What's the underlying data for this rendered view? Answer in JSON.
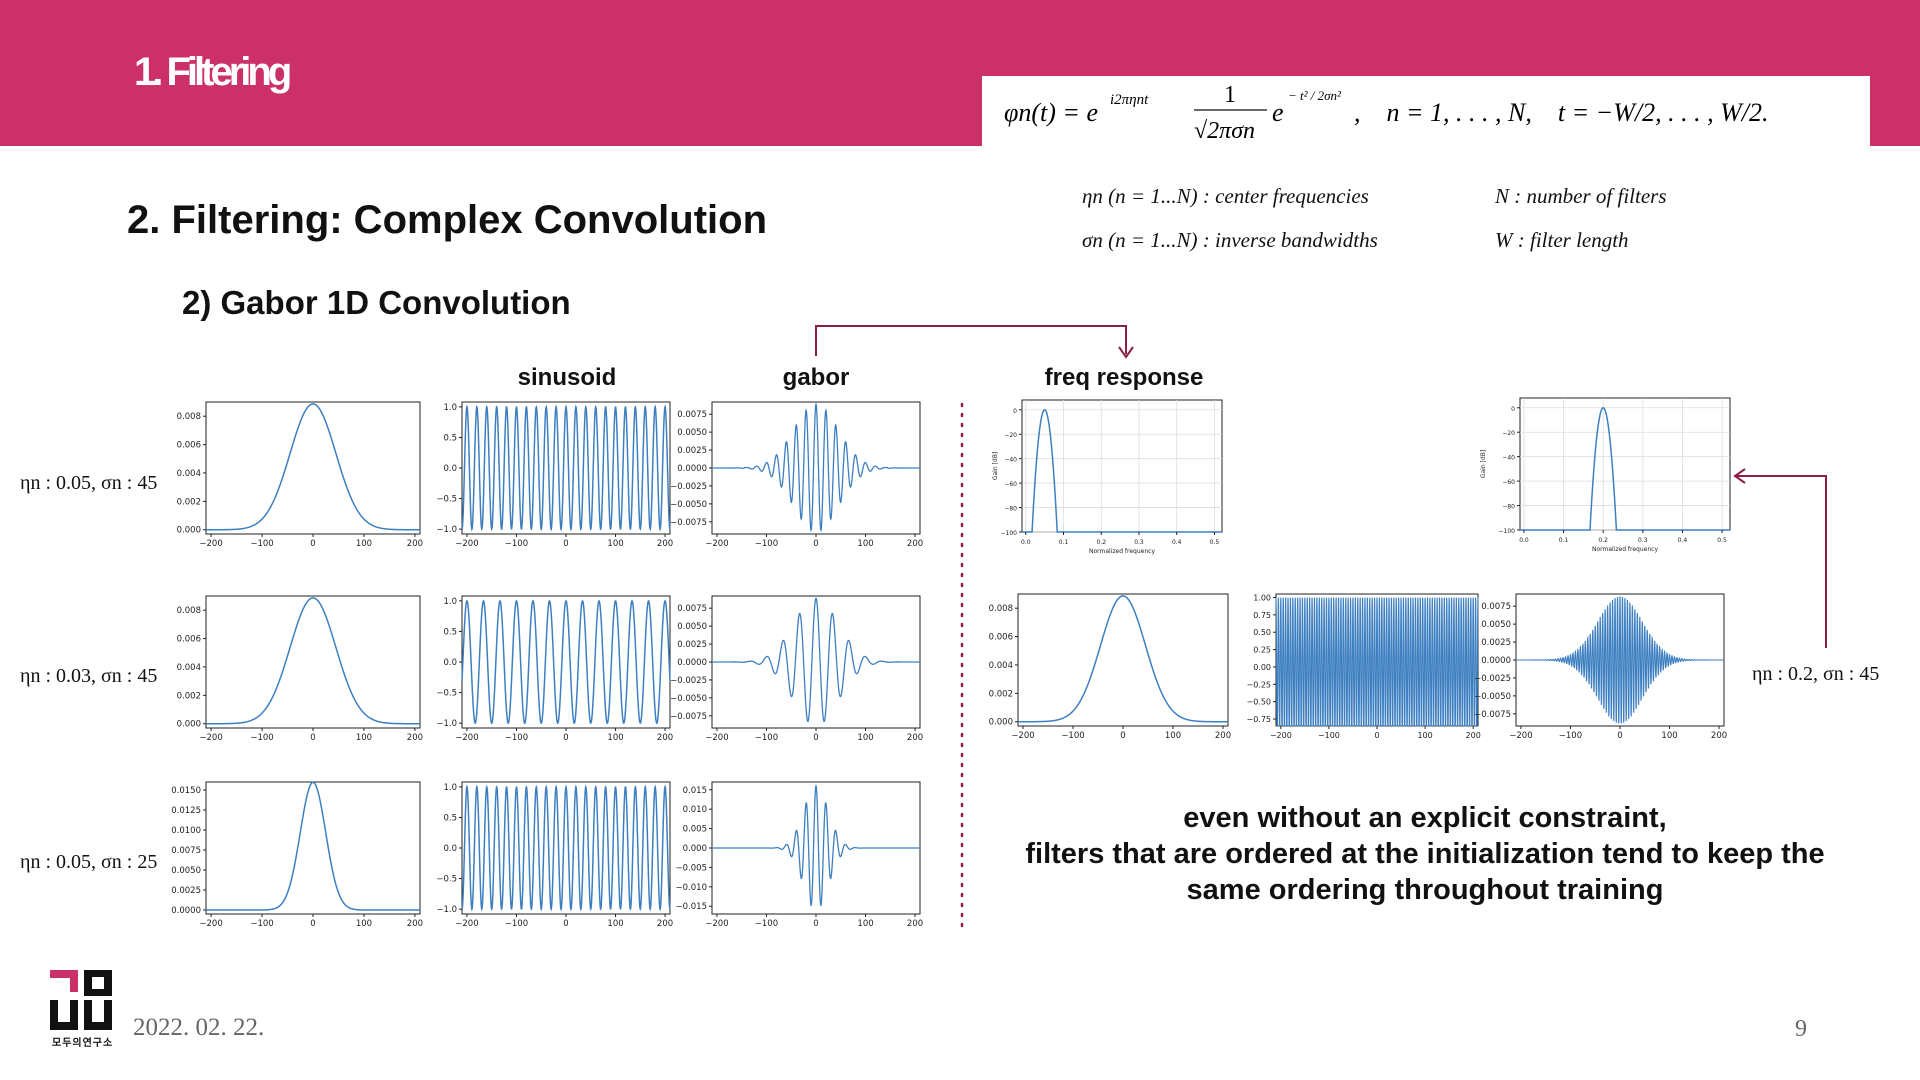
{
  "header": {
    "section_title": "1. Filtering"
  },
  "formula": {
    "lhs": "φn(t) = e",
    "exponent": "i2πηnt",
    "frac_num": "1",
    "frac_den": "√2πσn",
    "gauss_e": "e",
    "gauss_exp": "− t² / 2σn²",
    "ranges": ",    n = 1, . . . , N,    t = −W/2, . . . , W/2."
  },
  "legend": {
    "eta": "ηn (n = 1...N) : center frequencies",
    "sigma": "σn (n = 1...N) : inverse bandwidths",
    "N": "N : number of filters",
    "W": "W : filter length"
  },
  "title": "2. Filtering: Complex Convolution",
  "subtitle": "2)  Gabor 1D Convolution",
  "columns": {
    "sinusoid": "sinusoid",
    "gabor": "gabor",
    "freq": "freq response"
  },
  "rows": [
    {
      "label": "ηn : 0.05, σn : 45",
      "eta": 0.05,
      "sigma": 45
    },
    {
      "label": "ηn : 0.03, σn : 45",
      "eta": 0.03,
      "sigma": 45
    },
    {
      "label": "ηn : 0.05, σn : 25",
      "eta": 0.05,
      "sigma": 25
    }
  ],
  "right_example": {
    "label": "ηn : 0.2, σn : 45",
    "eta": 0.2,
    "sigma": 45
  },
  "note": "even without an explicit constraint,\nfilters that are ordered at the initialization tend to keep the\nsame ordering throughout training",
  "footer": {
    "date": "2022. 02. 22.",
    "page": "9",
    "logo_caption": "모두의연구소"
  },
  "colors": {
    "accent": "#cc3068",
    "line": "#3d7fc0",
    "arrow": "#8b1e44"
  },
  "chart_data": [
    {
      "type": "line",
      "title": "",
      "x": [
        -200,
        200
      ],
      "ylim": [
        0,
        0.009
      ],
      "yticks": [
        "0.000",
        "0.002",
        "0.004",
        "0.006",
        "0.008"
      ],
      "xticks": [
        "-200",
        "-100",
        "0",
        "100",
        "200"
      ],
      "series": [
        {
          "kind": "gaussian",
          "sigma": 45
        }
      ]
    },
    {
      "type": "line",
      "title": "",
      "x": [
        -200,
        200
      ],
      "ylim": [
        -1,
        1
      ],
      "yticks": [
        "-1.0",
        "-0.5",
        "0.0",
        "0.5",
        "1.0"
      ],
      "series": [
        {
          "kind": "cosine",
          "eta": 0.05
        }
      ]
    },
    {
      "type": "line",
      "title": "",
      "x": [
        -200,
        200
      ],
      "ylim": [
        -0.009,
        0.009
      ],
      "yticks": [
        "-0.0075",
        "-0.0050",
        "-0.0025",
        "0.0000",
        "0.0025",
        "0.0050",
        "0.0075"
      ],
      "series": [
        {
          "kind": "gabor",
          "eta": 0.05,
          "sigma": 45
        }
      ]
    },
    {
      "type": "line",
      "title": "",
      "x": [
        0,
        0.5
      ],
      "xlabel": "Normalized frequency",
      "ylabel": "Gain [dB]",
      "ylim": [
        -100,
        0
      ],
      "xticks": [
        "0.0",
        "0.1",
        "0.2",
        "0.3",
        "0.4",
        "0.5"
      ],
      "yticks": [
        "-100",
        "-80",
        "-60",
        "-40",
        "-20",
        "0"
      ],
      "series": [
        {
          "kind": "freq",
          "eta": 0.05
        }
      ]
    },
    {
      "type": "line",
      "title": "",
      "x": [
        0,
        0.5
      ],
      "xlabel": "Normalized frequency",
      "ylabel": "Gain [dB]",
      "ylim": [
        -100,
        0
      ],
      "series": [
        {
          "kind": "freq",
          "eta": 0.2
        }
      ]
    }
  ],
  "tick_text": {
    "x_time": [
      "−200",
      "−100",
      "0",
      "100",
      "200"
    ],
    "y_gauss45": [
      "0.000",
      "0.002",
      "0.004",
      "0.006",
      "0.008"
    ],
    "y_gauss25": [
      "0.0000",
      "0.0025",
      "0.0050",
      "0.0075",
      "0.0100",
      "0.0125",
      "0.0150"
    ],
    "y_sin": [
      "−1.0",
      "−0.5",
      "0.0",
      "0.5",
      "1.0"
    ],
    "y_sin_r": [
      "−0.75",
      "−0.50",
      "−0.25",
      "0.00",
      "0.25",
      "0.50",
      "0.75",
      "1.00"
    ],
    "y_gab": [
      "−0.0075",
      "−0.0050",
      "−0.0025",
      "0.0000",
      "0.0025",
      "0.0050",
      "0.0075"
    ],
    "y_gab25": [
      "−0.015",
      "−0.010",
      "−0.005",
      "0.000",
      "0.005",
      "0.010",
      "0.015"
    ],
    "x_freq": [
      "0.0",
      "0.1",
      "0.2",
      "0.3",
      "0.4",
      "0.5"
    ],
    "y_freq": [
      "−100",
      "−80",
      "−60",
      "−40",
      "−20",
      "0"
    ],
    "freq_xlabel": "Normalized frequency",
    "freq_ylabel": "Gain [dB]"
  }
}
